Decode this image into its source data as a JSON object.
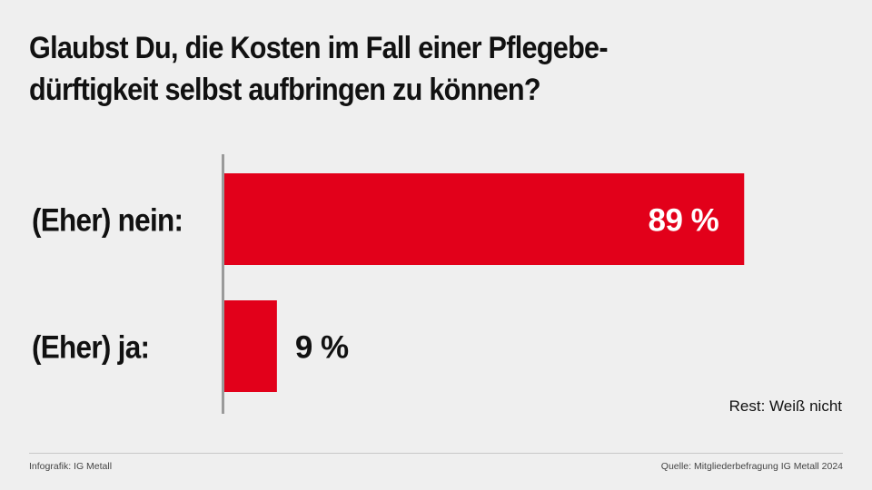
{
  "title_lines": [
    "Glaubst Du, die Kosten im Fall einer Pflegebe-",
    "dürftigkeit selbst aufbringen zu können?"
  ],
  "chart_data": {
    "type": "bar",
    "orientation": "horizontal",
    "categories": [
      "(Eher) nein:",
      "(Eher) ja:"
    ],
    "values": [
      89,
      9
    ],
    "value_labels": [
      "89 %",
      "9 %"
    ],
    "xlim": [
      0,
      100
    ],
    "unit": "%",
    "note": "Rest: Weiß nicht",
    "bar_color": "#e2001a",
    "grid": false
  },
  "footer": {
    "credit": "Infografik: IG Metall",
    "source": "Quelle: Mitgliederbefragung IG Metall 2024"
  },
  "colors": {
    "background": "#efefef",
    "text": "#111111",
    "axis": "#9a9a9a"
  }
}
